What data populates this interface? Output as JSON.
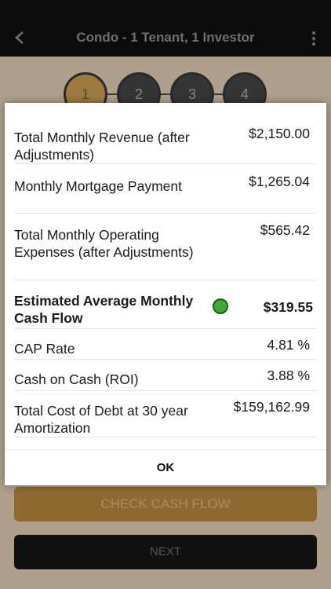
{
  "header": {
    "title": "Condo - 1 Tenant, 1 Investor"
  },
  "steps": [
    "1",
    "2",
    "3",
    "4"
  ],
  "buttons": {
    "check_cash_flow": "CHECK CASH FLOW",
    "next": "NEXT"
  },
  "modal": {
    "rows": [
      {
        "label": "Total Monthly Revenue (after Adjustments)",
        "value": "$2,150.00"
      },
      {
        "label": "Monthly Mortgage Payment",
        "value": "$1,265.04"
      },
      {
        "label": "Total Monthly Operating Expenses (after Adjustments)",
        "value": "$565.42"
      },
      {
        "label": "Estimated Average Monthly Cash Flow",
        "value": "$319.55"
      },
      {
        "label": "CAP Rate",
        "value": "4.81 %"
      },
      {
        "label": "Cash on Cash (ROI)",
        "value": "3.88 %"
      },
      {
        "label": "Total Cost of Debt at 30 year Amortization",
        "value": "$159,162.99"
      }
    ],
    "ok_label": "OK"
  },
  "colors": {
    "status_positive": "#3fa83a",
    "accent": "#9c7a42"
  }
}
